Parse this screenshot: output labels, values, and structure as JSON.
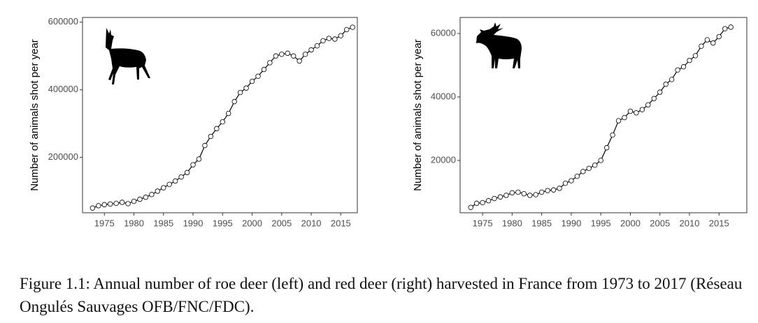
{
  "chart_data": [
    {
      "type": "line",
      "ylabel": "Number of animals shot per year",
      "x": [
        1973,
        1974,
        1975,
        1976,
        1977,
        1978,
        1979,
        1980,
        1981,
        1982,
        1983,
        1984,
        1985,
        1986,
        1987,
        1988,
        1989,
        1990,
        1991,
        1992,
        1993,
        1994,
        1995,
        1996,
        1997,
        1998,
        1999,
        2000,
        2001,
        2002,
        2003,
        2004,
        2005,
        2006,
        2007,
        2008,
        2009,
        2010,
        2011,
        2012,
        2013,
        2014,
        2015,
        2016,
        2017
      ],
      "values": [
        50000,
        57000,
        60000,
        62000,
        64000,
        67000,
        63000,
        70000,
        76000,
        82000,
        90000,
        100000,
        110000,
        120000,
        130000,
        142000,
        155000,
        178000,
        195000,
        235000,
        262000,
        285000,
        305000,
        330000,
        365000,
        392000,
        405000,
        425000,
        440000,
        460000,
        480000,
        500000,
        505000,
        508000,
        500000,
        485000,
        505000,
        518000,
        530000,
        545000,
        552000,
        550000,
        560000,
        578000,
        585000
      ],
      "color": "#000000",
      "marker_fill": "#ffffff",
      "xlim": [
        1971.3,
        2017.8
      ],
      "xticks": [
        1975,
        1980,
        1985,
        1990,
        1995,
        2000,
        2005,
        2010,
        2015
      ],
      "ylim": [
        36000,
        614000
      ],
      "yticks": [
        200000,
        400000,
        600000
      ]
    },
    {
      "type": "line",
      "ylabel": "Number of animals shot per year",
      "x": [
        1973,
        1974,
        1975,
        1976,
        1977,
        1978,
        1979,
        1980,
        1981,
        1982,
        1983,
        1984,
        1985,
        1986,
        1987,
        1988,
        1989,
        1990,
        1991,
        1992,
        1993,
        1994,
        1995,
        1996,
        1997,
        1998,
        1999,
        2000,
        2001,
        2002,
        2003,
        2004,
        2005,
        2006,
        2007,
        2008,
        2009,
        2010,
        2011,
        2012,
        2013,
        2014,
        2015,
        2016,
        2017
      ],
      "values": [
        5200,
        6500,
        6700,
        7300,
        8000,
        8500,
        9000,
        9800,
        10000,
        9500,
        9000,
        9200,
        10000,
        10500,
        10700,
        11200,
        12800,
        13600,
        15000,
        16500,
        17500,
        18500,
        20000,
        24000,
        28000,
        32500,
        33500,
        35500,
        35000,
        36000,
        37500,
        39500,
        41500,
        44000,
        45500,
        48500,
        49500,
        51500,
        53000,
        56000,
        58000,
        57000,
        59000,
        61500,
        62000
      ],
      "color": "#000000",
      "marker_fill": "#ffffff",
      "xlim": [
        1971.2,
        2019.7
      ],
      "xticks": [
        1975,
        1980,
        1985,
        1990,
        1995,
        2000,
        2005,
        2010,
        2015
      ],
      "ylim": [
        3500,
        65050
      ],
      "yticks": [
        20000,
        40000,
        60000
      ]
    }
  ],
  "caption": "Figure 1.1: Annual number of roe deer (left) and red deer (right) harvested in France from 1973 to 2017 (Réseau Ongulés Sauvages OFB/FNC/FDC)."
}
